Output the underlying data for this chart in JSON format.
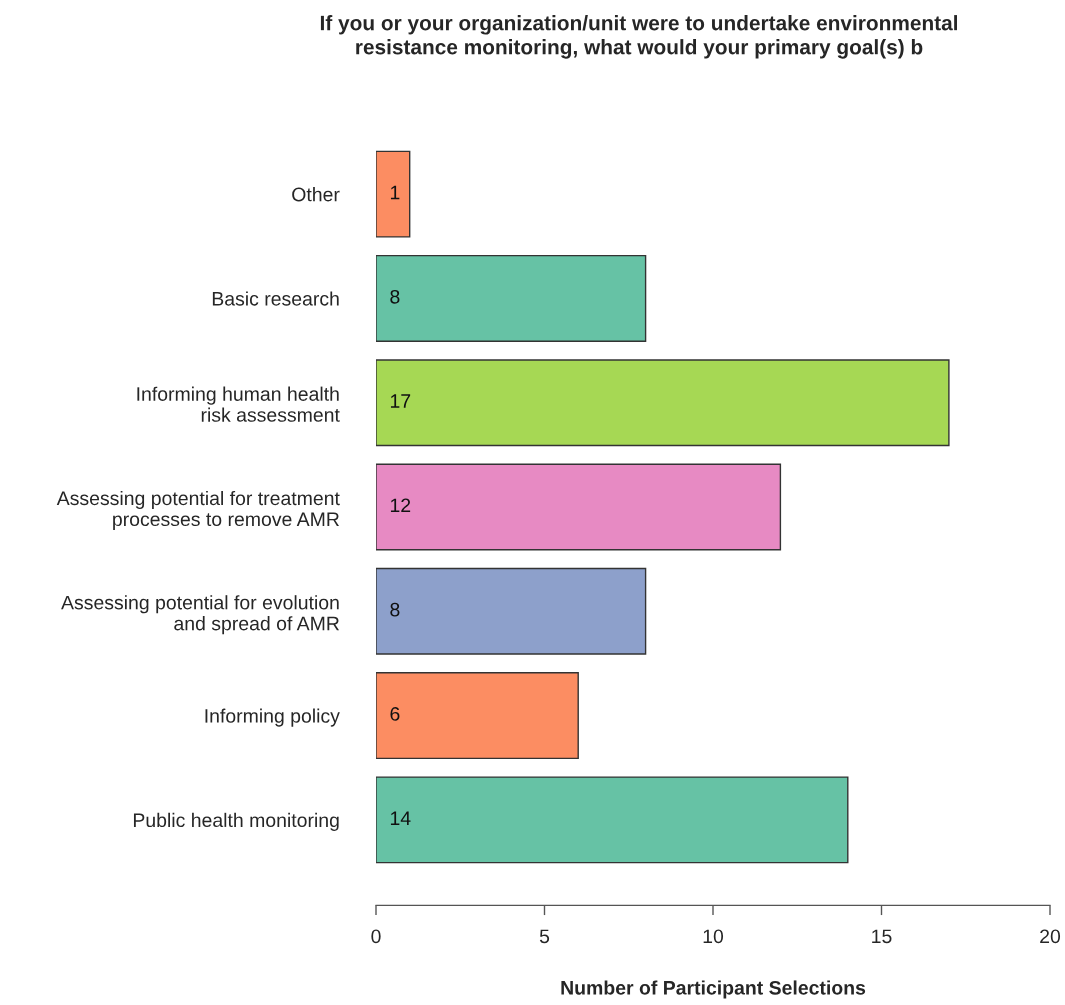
{
  "chart_data": {
    "type": "bar",
    "orientation": "horizontal",
    "title": "If you or your organization/unit were to undertake environmental\nresistance monitoring, what would your primary goal(s) b",
    "xlabel": "Number of Participant Selections",
    "categories": [
      "Other",
      "Basic research",
      "Informing human health\nrisk assessment",
      "Assessing potential for treatment\nprocesses to remove AMR",
      "Assessing potential for evolution\nand spread of AMR",
      "Informing policy",
      "Public health monitoring"
    ],
    "values": [
      1,
      8,
      17,
      12,
      8,
      6,
      14
    ],
    "colors": [
      "#fc8d62",
      "#66c2a5",
      "#a6d854",
      "#e78ac3",
      "#8da0cb",
      "#fc8d62",
      "#66c2a5"
    ],
    "xlim": [
      0,
      20
    ],
    "xticks": [
      0,
      5,
      10,
      15,
      20
    ],
    "data_labels": true,
    "grid": false,
    "legend": false
  }
}
